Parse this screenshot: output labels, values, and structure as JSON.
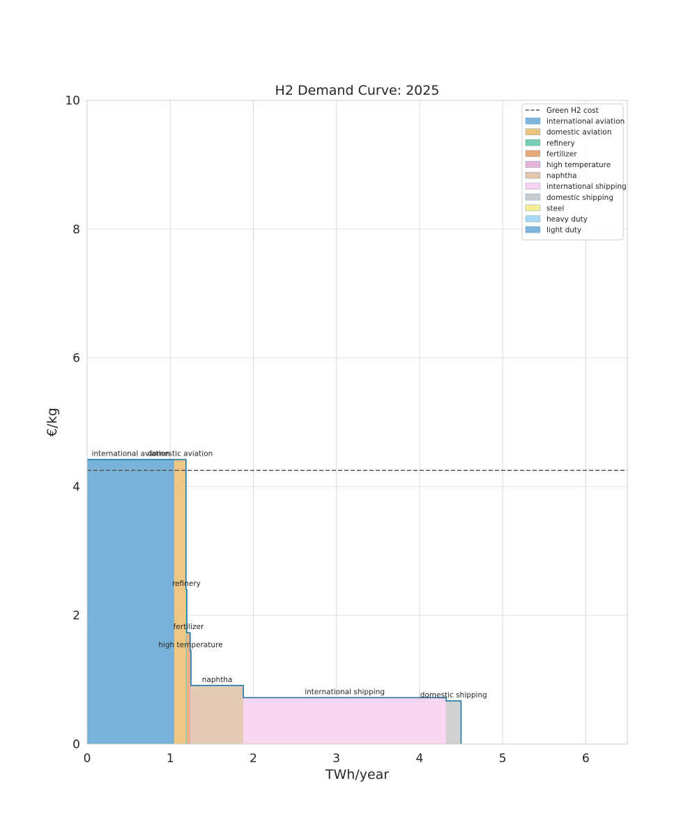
{
  "chart_data": {
    "type": "area",
    "title": "H2 Demand Curve: 2025",
    "xlabel": "TWh/year",
    "ylabel": "€/kg",
    "xlim": [
      0,
      6.5
    ],
    "ylim": [
      0,
      10
    ],
    "xticks": [
      "0",
      "1",
      "2",
      "3",
      "4",
      "5",
      "6"
    ],
    "yticks": [
      "0",
      "2",
      "4",
      "6",
      "8",
      "10"
    ],
    "grid": true,
    "legend_position": "top-right",
    "reference_line": {
      "name": "Green H2 cost",
      "value": 4.25,
      "style": "dashed",
      "color": "#555555"
    },
    "steps": [
      {
        "name": "international aviation",
        "x_start": 0.0,
        "x_end": 1.05,
        "price": 4.42,
        "color": "#6aaad4",
        "label": "international aviation"
      },
      {
        "name": "domestic aviation",
        "x_start": 1.05,
        "x_end": 1.19,
        "price": 4.42,
        "color": "#ecc178",
        "label": "domestic aviation"
      },
      {
        "name": "refinery",
        "x_start": 1.19,
        "x_end": 1.2,
        "price": 2.4,
        "color": "#76cfb4",
        "label": "refinery"
      },
      {
        "name": "fertilizer",
        "x_start": 1.2,
        "x_end": 1.24,
        "price": 1.73,
        "color": "#e8a878",
        "label": "fertilizer"
      },
      {
        "name": "high temperature",
        "x_start": 1.24,
        "x_end": 1.25,
        "price": 1.45,
        "color": "#e6b3d9",
        "label": "high temperature"
      },
      {
        "name": "naphtha",
        "x_start": 1.25,
        "x_end": 1.88,
        "price": 0.91,
        "color": "#e0c4ac",
        "label": "naphtha"
      },
      {
        "name": "international shipping",
        "x_start": 1.88,
        "x_end": 4.32,
        "price": 0.72,
        "color": "#f9d2ee",
        "label": "international shipping"
      },
      {
        "name": "domestic shipping",
        "x_start": 4.32,
        "x_end": 4.5,
        "price": 0.67,
        "color": "#cbcbcb",
        "label": "domestic shipping"
      }
    ],
    "legend": [
      {
        "name": "Green H2 cost",
        "kind": "line",
        "color": "#555555"
      },
      {
        "name": "international aviation",
        "kind": "patch",
        "color": "#7fb5dd"
      },
      {
        "name": "domestic aviation",
        "kind": "patch",
        "color": "#ecc57d"
      },
      {
        "name": "refinery",
        "kind": "patch",
        "color": "#76cfb4"
      },
      {
        "name": "fertilizer",
        "kind": "patch",
        "color": "#e8a878"
      },
      {
        "name": "high temperature",
        "kind": "patch",
        "color": "#e6b3d9"
      },
      {
        "name": "naphtha",
        "kind": "patch",
        "color": "#e3c6ad"
      },
      {
        "name": "international shipping",
        "kind": "patch",
        "color": "#f9d2ee"
      },
      {
        "name": "domestic shipping",
        "kind": "patch",
        "color": "#cbcbcb"
      },
      {
        "name": "steel",
        "kind": "patch",
        "color": "#f5ec94"
      },
      {
        "name": "heavy duty",
        "kind": "patch",
        "color": "#a9d8f2"
      },
      {
        "name": "light duty",
        "kind": "patch",
        "color": "#7fb5dd"
      }
    ],
    "outline_color": "#1f77a4"
  }
}
